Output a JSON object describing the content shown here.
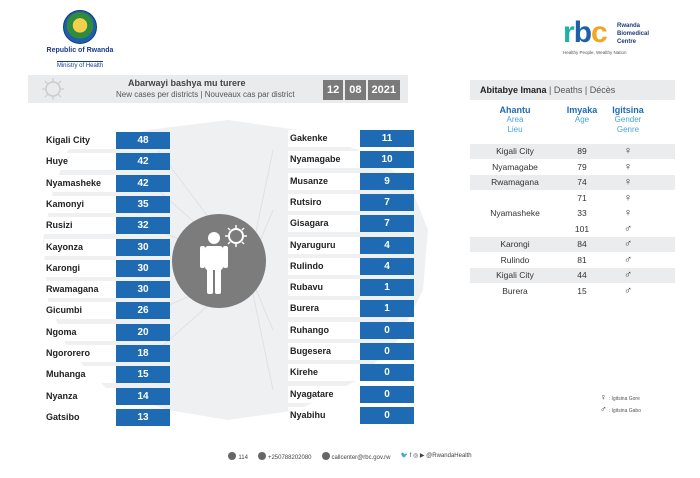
{
  "header": {
    "republic": "Republic of Rwanda",
    "ministry": "Ministry of Health",
    "rbc_mark": {
      "r": "r",
      "b": "b",
      "c": "c"
    },
    "rbc_name_1": "Rwanda",
    "rbc_name_2": "Biomedical",
    "rbc_name_3": "Centre",
    "rbc_tagline": "Healthy People, Wealthy Nation"
  },
  "new_cases": {
    "title": "Abarwayi bashya mu turere",
    "subtitle": "New cases per districts  |  Nouveaux cas par district",
    "date": {
      "day": "12",
      "month": "08",
      "year": "2021"
    },
    "left_column": [
      {
        "district": "Kigali City",
        "cases": "48"
      },
      {
        "district": "Huye",
        "cases": "42"
      },
      {
        "district": "Nyamasheke",
        "cases": "42"
      },
      {
        "district": "Kamonyi",
        "cases": "35"
      },
      {
        "district": "Rusizi",
        "cases": "32"
      },
      {
        "district": "Kayonza",
        "cases": "30"
      },
      {
        "district": "Karongi",
        "cases": "30"
      },
      {
        "district": "Rwamagana",
        "cases": "30"
      },
      {
        "district": "Gicumbi",
        "cases": "26"
      },
      {
        "district": "Ngoma",
        "cases": "20"
      },
      {
        "district": "Ngororero",
        "cases": "18"
      },
      {
        "district": "Muhanga",
        "cases": "15"
      },
      {
        "district": "Nyanza",
        "cases": "14"
      },
      {
        "district": "Gatsibo",
        "cases": "13"
      }
    ],
    "right_column": [
      {
        "district": "Gakenke",
        "cases": "11"
      },
      {
        "district": "Nyamagabe",
        "cases": "10"
      },
      {
        "district": "Musanze",
        "cases": "9"
      },
      {
        "district": "Rutsiro",
        "cases": "7"
      },
      {
        "district": "Gisagara",
        "cases": "7"
      },
      {
        "district": "Nyaruguru",
        "cases": "4"
      },
      {
        "district": "Rulindo",
        "cases": "4"
      },
      {
        "district": "Rubavu",
        "cases": "1"
      },
      {
        "district": "Burera",
        "cases": "1"
      },
      {
        "district": "Ruhango",
        "cases": "0"
      },
      {
        "district": "Bugesera",
        "cases": "0"
      },
      {
        "district": "Kirehe",
        "cases": "0"
      },
      {
        "district": "Nyagatare",
        "cases": "0"
      },
      {
        "district": "Nyabihu",
        "cases": "0"
      }
    ]
  },
  "deaths": {
    "title": "Abitabye Imana",
    "title_rest": "  |  Deaths  |  Décès",
    "columns": {
      "area": {
        "main": "Ahantu",
        "sub1": "Area",
        "sub2": "Lieu"
      },
      "age": {
        "main": "Imyaka",
        "sub1": "Age",
        "sub2": ""
      },
      "gender": {
        "main": "Igitsina",
        "sub1": "Gender",
        "sub2": "Genre"
      }
    },
    "rows": [
      {
        "area": "Kigali City",
        "age": "89",
        "gender": "♀"
      },
      {
        "area": "Nyamagabe",
        "age": "79",
        "gender": "♀"
      },
      {
        "area": "Rwamagana",
        "age": "74",
        "gender": "♀"
      },
      {
        "area": "",
        "age": "71",
        "gender": "♀"
      },
      {
        "area": "Nyamasheke",
        "age": "33",
        "gender": "♀"
      },
      {
        "area": "",
        "age": "101",
        "gender": "♂"
      },
      {
        "area": "Karongi",
        "age": "84",
        "gender": "♂"
      },
      {
        "area": "Rulindo",
        "age": "81",
        "gender": "♂"
      },
      {
        "area": "Kigali City",
        "age": "44",
        "gender": "♂"
      },
      {
        "area": "Burera",
        "age": "15",
        "gender": "♂"
      }
    ],
    "legend": {
      "female_symbol": "♀",
      "female_label": ": Igitsina Gore",
      "male_symbol": "♂",
      "male_label": ": Igitsina Gabo"
    }
  },
  "footer": {
    "hotline": "114",
    "phone": "+250788202080",
    "email": "callcenter@rbc.gov.rw",
    "social": "@RwandaHealth",
    "social_icons": "🐦 f ◎ ▶"
  }
}
